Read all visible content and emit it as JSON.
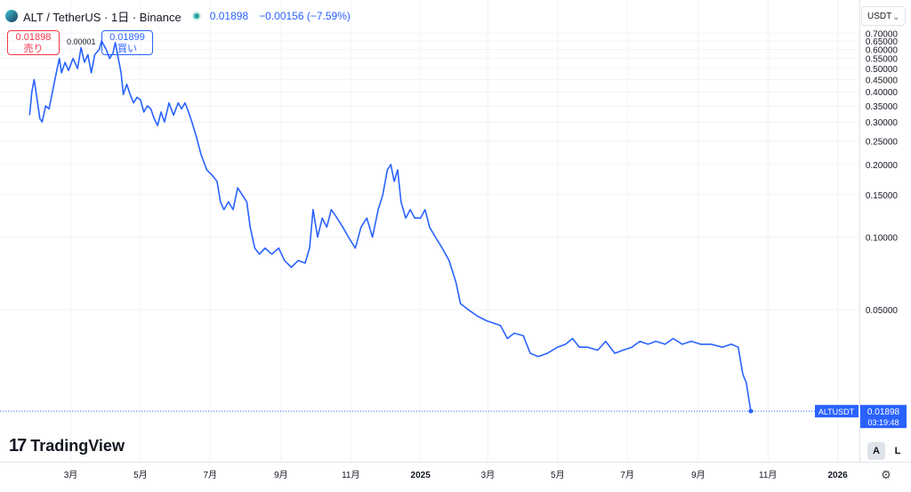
{
  "header": {
    "symbol": "ALT / TetherUS · 1日 · Binance",
    "last": "0.01898",
    "change": "−0.00156 (−7.59%)"
  },
  "trade": {
    "sell_price": "0.01898",
    "sell_label": "売り",
    "spread": "0.00001",
    "buy_price": "0.01899",
    "buy_label": "買い"
  },
  "currency": "USDT",
  "price_tag": {
    "symbol": "ALTUSDT",
    "price": "0.01898",
    "countdown": "03:19:48"
  },
  "brand": "TradingView",
  "controls": {
    "auto": "A",
    "log": "L"
  },
  "colors": {
    "line": "#2962ff",
    "tag_bg": "#2962ff"
  },
  "chart_data": {
    "type": "line",
    "scale": "log",
    "ylim": [
      0.015,
      0.72
    ],
    "xlim": [
      "2024-01-10",
      "2026-01-20"
    ],
    "grid": true,
    "yticks": [
      "0.05000",
      "0.10000",
      "0.15000",
      "0.20000",
      "0.25000",
      "0.30000",
      "0.35000",
      "0.40000",
      "0.45000",
      "0.50000",
      "0.55000",
      "0.60000",
      "0.65000",
      "0.70000"
    ],
    "xticks": [
      {
        "label": "3月",
        "date": "2024-03-01"
      },
      {
        "label": "5月",
        "date": "2024-05-01"
      },
      {
        "label": "7月",
        "date": "2024-07-01"
      },
      {
        "label": "9月",
        "date": "2024-09-01"
      },
      {
        "label": "11月",
        "date": "2024-11-01"
      },
      {
        "label": "2025",
        "date": "2025-01-01",
        "bold": true
      },
      {
        "label": "3月",
        "date": "2025-03-01"
      },
      {
        "label": "5月",
        "date": "2025-05-01"
      },
      {
        "label": "7月",
        "date": "2025-07-01"
      },
      {
        "label": "9月",
        "date": "2025-09-01"
      },
      {
        "label": "11月",
        "date": "2025-11-01"
      },
      {
        "label": "2026",
        "date": "2026-01-01",
        "bold": true
      }
    ],
    "series": [
      {
        "points": [
          [
            "2024-01-25",
            0.32
          ],
          [
            "2024-01-27",
            0.4
          ],
          [
            "2024-01-29",
            0.45
          ],
          [
            "2024-02-01",
            0.36
          ],
          [
            "2024-02-03",
            0.31
          ],
          [
            "2024-02-05",
            0.3
          ],
          [
            "2024-02-08",
            0.35
          ],
          [
            "2024-02-11",
            0.34
          ],
          [
            "2024-02-14",
            0.4
          ],
          [
            "2024-02-17",
            0.47
          ],
          [
            "2024-02-20",
            0.55
          ],
          [
            "2024-02-22",
            0.48
          ],
          [
            "2024-02-25",
            0.53
          ],
          [
            "2024-02-28",
            0.49
          ],
          [
            "2024-03-03",
            0.55
          ],
          [
            "2024-03-07",
            0.5
          ],
          [
            "2024-03-10",
            0.61
          ],
          [
            "2024-03-13",
            0.53
          ],
          [
            "2024-03-16",
            0.57
          ],
          [
            "2024-03-19",
            0.48
          ],
          [
            "2024-03-22",
            0.57
          ],
          [
            "2024-03-26",
            0.6
          ],
          [
            "2024-03-28",
            0.65
          ],
          [
            "2024-04-01",
            0.6
          ],
          [
            "2024-04-04",
            0.55
          ],
          [
            "2024-04-07",
            0.58
          ],
          [
            "2024-04-09",
            0.64
          ],
          [
            "2024-04-11",
            0.57
          ],
          [
            "2024-04-14",
            0.48
          ],
          [
            "2024-04-16",
            0.39
          ],
          [
            "2024-04-19",
            0.43
          ],
          [
            "2024-04-22",
            0.39
          ],
          [
            "2024-04-25",
            0.36
          ],
          [
            "2024-04-28",
            0.38
          ],
          [
            "2024-05-01",
            0.37
          ],
          [
            "2024-05-04",
            0.33
          ],
          [
            "2024-05-07",
            0.35
          ],
          [
            "2024-05-10",
            0.34
          ],
          [
            "2024-05-13",
            0.31
          ],
          [
            "2024-05-16",
            0.29
          ],
          [
            "2024-05-19",
            0.33
          ],
          [
            "2024-05-22",
            0.3
          ],
          [
            "2024-05-26",
            0.36
          ],
          [
            "2024-05-30",
            0.32
          ],
          [
            "2024-06-03",
            0.36
          ],
          [
            "2024-06-06",
            0.34
          ],
          [
            "2024-06-09",
            0.36
          ],
          [
            "2024-06-12",
            0.33
          ],
          [
            "2024-06-15",
            0.3
          ],
          [
            "2024-06-19",
            0.26
          ],
          [
            "2024-06-23",
            0.22
          ],
          [
            "2024-06-28",
            0.19
          ],
          [
            "2024-07-03",
            0.18
          ],
          [
            "2024-07-07",
            0.17
          ],
          [
            "2024-07-10",
            0.14
          ],
          [
            "2024-07-13",
            0.13
          ],
          [
            "2024-07-17",
            0.14
          ],
          [
            "2024-07-21",
            0.13
          ],
          [
            "2024-07-25",
            0.16
          ],
          [
            "2024-07-29",
            0.15
          ],
          [
            "2024-08-02",
            0.14
          ],
          [
            "2024-08-05",
            0.11
          ],
          [
            "2024-08-09",
            0.09
          ],
          [
            "2024-08-13",
            0.085
          ],
          [
            "2024-08-18",
            0.09
          ],
          [
            "2024-08-24",
            0.085
          ],
          [
            "2024-08-30",
            0.09
          ],
          [
            "2024-09-04",
            0.08
          ],
          [
            "2024-09-10",
            0.075
          ],
          [
            "2024-09-16",
            0.08
          ],
          [
            "2024-09-22",
            0.078
          ],
          [
            "2024-09-26",
            0.09
          ],
          [
            "2024-09-29",
            0.13
          ],
          [
            "2024-10-03",
            0.1
          ],
          [
            "2024-10-07",
            0.12
          ],
          [
            "2024-10-11",
            0.11
          ],
          [
            "2024-10-15",
            0.13
          ],
          [
            "2024-10-20",
            0.12
          ],
          [
            "2024-10-25",
            0.11
          ],
          [
            "2024-10-30",
            0.1
          ],
          [
            "2024-11-05",
            0.09
          ],
          [
            "2024-11-10",
            0.11
          ],
          [
            "2024-11-15",
            0.12
          ],
          [
            "2024-11-20",
            0.1
          ],
          [
            "2024-11-25",
            0.13
          ],
          [
            "2024-11-29",
            0.15
          ],
          [
            "2024-12-03",
            0.19
          ],
          [
            "2024-12-06",
            0.2
          ],
          [
            "2024-12-09",
            0.17
          ],
          [
            "2024-12-12",
            0.19
          ],
          [
            "2024-12-15",
            0.14
          ],
          [
            "2024-12-19",
            0.12
          ],
          [
            "2024-12-23",
            0.13
          ],
          [
            "2024-12-27",
            0.12
          ],
          [
            "2025-01-01",
            0.12
          ],
          [
            "2025-01-05",
            0.13
          ],
          [
            "2025-01-09",
            0.11
          ],
          [
            "2025-01-14",
            0.1
          ],
          [
            "2025-01-20",
            0.09
          ],
          [
            "2025-01-26",
            0.08
          ],
          [
            "2025-02-01",
            0.065
          ],
          [
            "2025-02-05",
            0.053
          ],
          [
            "2025-02-12",
            0.05
          ],
          [
            "2025-02-20",
            0.047
          ],
          [
            "2025-02-28",
            0.045
          ],
          [
            "2025-03-06",
            0.044
          ],
          [
            "2025-03-12",
            0.043
          ],
          [
            "2025-03-18",
            0.038
          ],
          [
            "2025-03-24",
            0.04
          ],
          [
            "2025-04-01",
            0.039
          ],
          [
            "2025-04-07",
            0.033
          ],
          [
            "2025-04-14",
            0.032
          ],
          [
            "2025-04-22",
            0.033
          ],
          [
            "2025-05-01",
            0.035
          ],
          [
            "2025-05-08",
            0.036
          ],
          [
            "2025-05-14",
            0.038
          ],
          [
            "2025-05-20",
            0.035
          ],
          [
            "2025-05-27",
            0.035
          ],
          [
            "2025-06-05",
            0.034
          ],
          [
            "2025-06-12",
            0.037
          ],
          [
            "2025-06-20",
            0.033
          ],
          [
            "2025-06-27",
            0.034
          ],
          [
            "2025-07-05",
            0.035
          ],
          [
            "2025-07-12",
            0.037
          ],
          [
            "2025-07-19",
            0.036
          ],
          [
            "2025-07-26",
            0.037
          ],
          [
            "2025-08-03",
            0.036
          ],
          [
            "2025-08-10",
            0.038
          ],
          [
            "2025-08-18",
            0.036
          ],
          [
            "2025-08-26",
            0.037
          ],
          [
            "2025-09-03",
            0.036
          ],
          [
            "2025-09-12",
            0.036
          ],
          [
            "2025-09-22",
            0.035
          ],
          [
            "2025-09-30",
            0.036
          ],
          [
            "2025-10-06",
            0.035
          ],
          [
            "2025-10-10",
            0.027
          ],
          [
            "2025-10-13",
            0.025
          ],
          [
            "2025-10-17",
            0.019
          ]
        ]
      }
    ]
  }
}
